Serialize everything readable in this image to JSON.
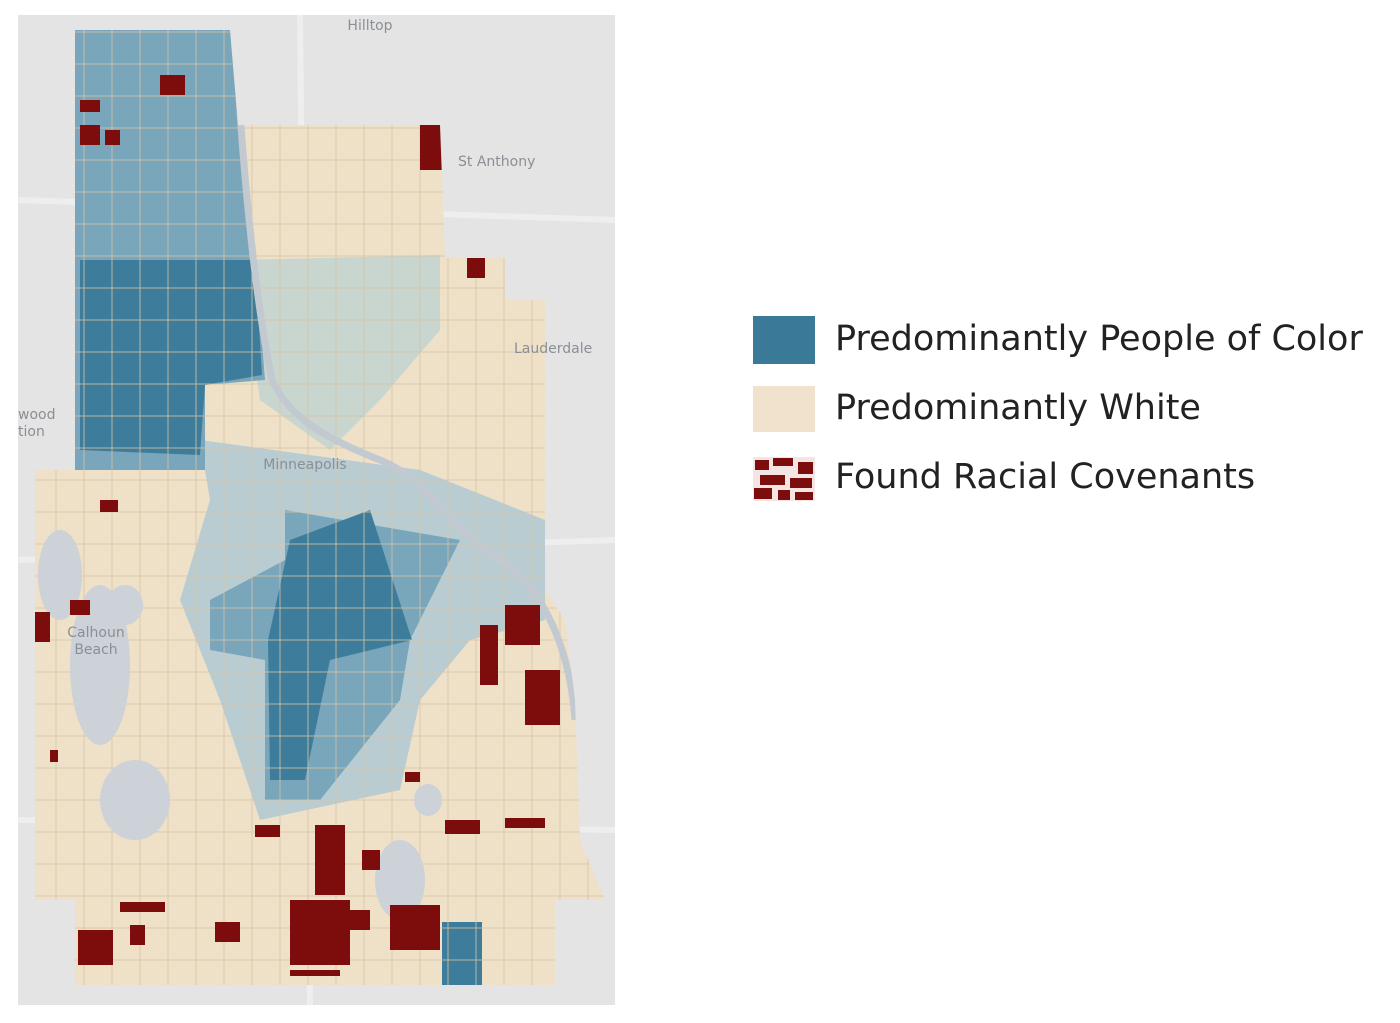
{
  "map": {
    "place_labels": [
      "Hilltop",
      "St Anthony",
      "Lauderdale",
      "Minneapolis",
      "Calhoun",
      "Beach",
      "wood",
      "tion"
    ]
  },
  "legend": {
    "items": [
      "Predominantly People of Color",
      "Predominantly White",
      "Found Racial Covenants"
    ]
  }
}
